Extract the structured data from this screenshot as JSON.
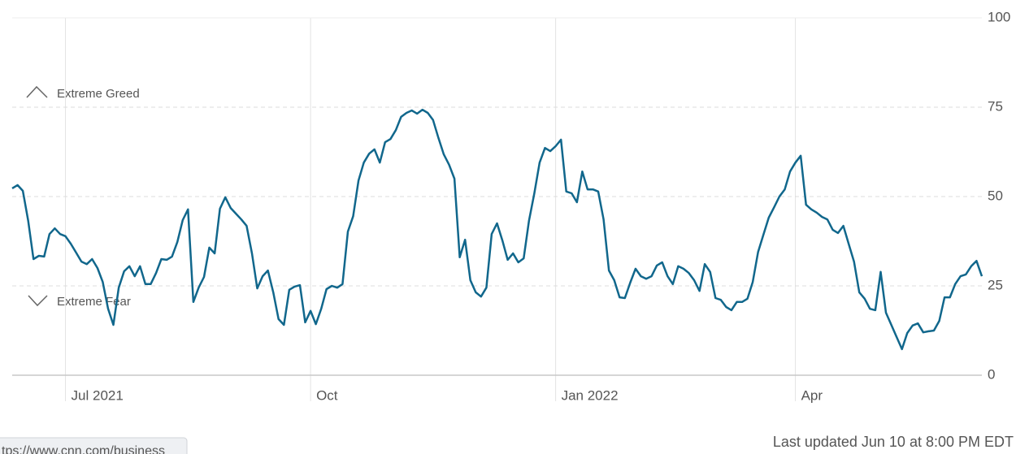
{
  "chart_data": {
    "type": "line",
    "annotations": {
      "greed": "Extreme Greed",
      "fear": "Extreme Fear"
    },
    "footnote": "Last updated Jun 10 at 8:00 PM EDT",
    "status_url": "tps://www.cnn.com/business",
    "categories": [
      null,
      null,
      null,
      null,
      null,
      null,
      null,
      null,
      null,
      null,
      "Jul 2021",
      null,
      null,
      null,
      null,
      null,
      null,
      null,
      null,
      null,
      null,
      null,
      null,
      null,
      null,
      null,
      null,
      null,
      null,
      null,
      null,
      null,
      null,
      null,
      null,
      null,
      null,
      null,
      null,
      null,
      null,
      null,
      null,
      null,
      null,
      null,
      null,
      null,
      null,
      null,
      null,
      null,
      null,
      null,
      null,
      null,
      "Oct",
      null,
      null,
      null,
      null,
      null,
      null,
      null,
      null,
      null,
      null,
      null,
      null,
      null,
      null,
      null,
      null,
      null,
      null,
      null,
      null,
      null,
      null,
      null,
      null,
      null,
      null,
      null,
      null,
      null,
      null,
      null,
      null,
      null,
      null,
      null,
      null,
      null,
      null,
      null,
      null,
      null,
      null,
      null,
      null,
      null,
      "Jan 2022",
      null,
      null,
      null,
      null,
      null,
      null,
      null,
      null,
      null,
      null,
      null,
      null,
      null,
      null,
      null,
      null,
      null,
      null,
      null,
      null,
      null,
      null,
      null,
      null,
      null,
      null,
      null,
      null,
      null,
      null,
      null,
      null,
      null,
      null,
      null,
      null,
      null,
      null,
      null,
      null,
      null,
      null,
      null,
      null,
      "Apr",
      null,
      null,
      null,
      null,
      null,
      null,
      null,
      null,
      null,
      null,
      null,
      null,
      null,
      null,
      null,
      null,
      null,
      null,
      null,
      null,
      null,
      null,
      null,
      null,
      null,
      null,
      null,
      null,
      null,
      null,
      null,
      null,
      null,
      null,
      null
    ],
    "values": [
      52.3,
      53.2,
      51.6,
      43.2,
      32.5,
      33.4,
      33.2,
      39.5,
      41.1,
      39.5,
      38.9,
      36.8,
      34.3,
      31.8,
      31.1,
      32.5,
      30,
      26.1,
      18.6,
      14.1,
      24.5,
      29.1,
      30.5,
      27.7,
      30.5,
      25.5,
      25.5,
      28.6,
      32.5,
      32.3,
      33.2,
      37.3,
      43.4,
      46.4,
      20.5,
      24.5,
      27.5,
      35.7,
      34.1,
      46.6,
      49.8,
      46.8,
      45.2,
      43.6,
      41.8,
      34.1,
      24.3,
      27.7,
      29.3,
      23.2,
      15.7,
      14.1,
      23.9,
      24.8,
      25.2,
      14.8,
      18,
      14.3,
      18.6,
      24.1,
      25,
      24.5,
      25.5,
      40.2,
      44.5,
      54.5,
      59.5,
      62,
      63.2,
      59.5,
      65.2,
      66.1,
      68.6,
      72.3,
      73.4,
      74.1,
      73.2,
      74.3,
      73.4,
      71.4,
      66.4,
      61.8,
      58.9,
      55,
      33,
      37.9,
      26.6,
      23.2,
      22,
      24.5,
      39.5,
      42.5,
      37.7,
      32.3,
      34.1,
      31.6,
      32.7,
      43.2,
      50.9,
      59.5,
      63.6,
      62.7,
      64.1,
      65.9,
      51.4,
      50.9,
      48.4,
      57,
      52,
      52,
      51.4,
      43.6,
      29.3,
      26.6,
      21.8,
      21.6,
      25.9,
      29.8,
      27.7,
      27,
      27.7,
      30.7,
      31.6,
      27.7,
      25.5,
      30.5,
      29.8,
      28.6,
      26.6,
      23.6,
      31.1,
      28.9,
      21.6,
      21.1,
      19.1,
      18.2,
      20.5,
      20.5,
      21.4,
      26.1,
      34.5,
      39.3,
      44.1,
      47,
      50,
      52,
      57,
      59.5,
      61.4,
      47.7,
      46.4,
      45.5,
      44.3,
      43.6,
      40.7,
      39.8,
      41.8,
      36.8,
      31.8,
      23.2,
      21.4,
      18.6,
      18.2,
      28.9,
      17.5,
      14.1,
      10.7,
      7.3,
      11.8,
      13.9,
      14.5,
      12,
      12.3,
      12.5,
      15.2,
      21.8,
      21.8,
      25.5,
      27.7,
      28.2,
      30.5,
      32,
      27.7
    ],
    "color": "#11678c",
    "ylim": [
      0,
      100
    ],
    "yticks": [
      0,
      25,
      50,
      75,
      100
    ],
    "grid": true
  }
}
